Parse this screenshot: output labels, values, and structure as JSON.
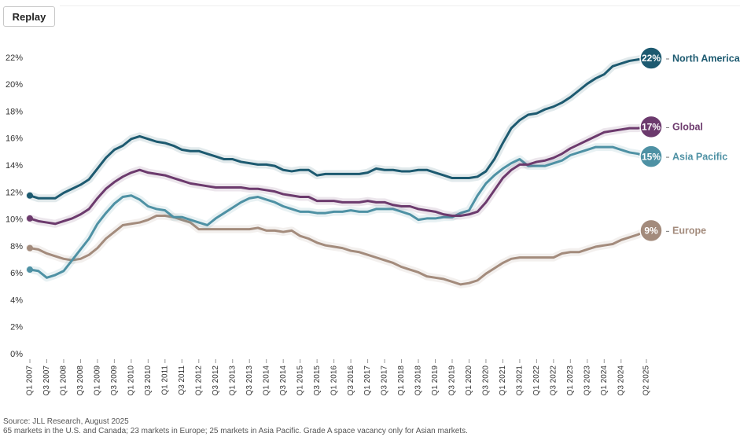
{
  "button": "Replay",
  "chart_data": {
    "type": "line",
    "categories": [
      "Q1 2007",
      null,
      "Q3 2007",
      null,
      "Q1 2008",
      null,
      "Q3 2008",
      null,
      "Q1 2009",
      null,
      "Q3 2009",
      null,
      "Q1 2010",
      null,
      "Q3 2010",
      null,
      "Q1 2011",
      null,
      "Q3 2011",
      null,
      "Q1 2012",
      null,
      "Q3 2012",
      null,
      "Q1 2013",
      null,
      "Q3 2013",
      null,
      "Q1 2014",
      null,
      "Q3 2014",
      null,
      "Q1 2015",
      null,
      "Q3 2015",
      null,
      "Q1 2016",
      null,
      "Q3 2016",
      null,
      "Q1 2017",
      null,
      "Q3 2017",
      null,
      "Q1 2018",
      null,
      "Q3 2018",
      null,
      "Q1 2019",
      null,
      "Q3 2019",
      null,
      "Q1 2020",
      null,
      "Q3 2020",
      null,
      "Q1 2021",
      null,
      "Q3 2021",
      null,
      "Q1 2022",
      null,
      "Q3 2022",
      null,
      "Q1 2023",
      null,
      "Q3 2023",
      null,
      "Q1 2024",
      null,
      "Q3 2024",
      null,
      null,
      "Q2 2025"
    ],
    "series": [
      {
        "name": "Europe",
        "color": "#a38b7c",
        "values": [
          7.9,
          7.8,
          7.5,
          7.3,
          7.1,
          7.0,
          7.1,
          7.4,
          7.9,
          8.6,
          9.1,
          9.6,
          9.7,
          9.8,
          10.0,
          10.3,
          10.3,
          10.2,
          10.0,
          9.8,
          9.3,
          9.3,
          9.3,
          9.3,
          9.3,
          9.3,
          9.3,
          9.4,
          9.2,
          9.2,
          9.1,
          9.2,
          8.8,
          8.6,
          8.3,
          8.1,
          8.0,
          7.9,
          7.7,
          7.6,
          7.4,
          7.2,
          7.0,
          6.8,
          6.5,
          6.3,
          6.1,
          5.8,
          5.7,
          5.6,
          5.4,
          5.2,
          5.3,
          5.5,
          6.0,
          6.4,
          6.8,
          7.1,
          7.2,
          7.2,
          7.2,
          7.2,
          7.2,
          7.5,
          7.6,
          7.6,
          7.8,
          8.0,
          8.1,
          8.2,
          8.5,
          8.7,
          8.9,
          9.2
        ],
        "value_labels": [
          null,
          null,
          null,
          null,
          null,
          null,
          null,
          null,
          null,
          null,
          null,
          null,
          null,
          null,
          null,
          null,
          null,
          null,
          null,
          null,
          null,
          null,
          null,
          null,
          null,
          null,
          null,
          null,
          null,
          null,
          null,
          null,
          null,
          null,
          null,
          null,
          null,
          null,
          null,
          null,
          null,
          null,
          null,
          null,
          null,
          null,
          null,
          null,
          null,
          null,
          null,
          null,
          null,
          null,
          null,
          null,
          null,
          null,
          null,
          null,
          null,
          null,
          null,
          null,
          null,
          null,
          null,
          null,
          null,
          null,
          null,
          null,
          null,
          "9%"
        ]
      },
      {
        "name": "Asia Pacific",
        "color": "#4e91a4",
        "values": [
          6.3,
          6.2,
          5.7,
          5.9,
          6.2,
          7.0,
          7.8,
          8.6,
          9.7,
          10.5,
          11.2,
          11.7,
          11.8,
          11.5,
          11.0,
          10.8,
          10.7,
          10.2,
          10.2,
          10.0,
          9.8,
          9.6,
          10.1,
          10.5,
          10.9,
          11.3,
          11.6,
          11.7,
          11.5,
          11.3,
          11.0,
          10.8,
          10.6,
          10.6,
          10.5,
          10.5,
          10.6,
          10.6,
          10.7,
          10.6,
          10.6,
          10.8,
          10.8,
          10.8,
          10.6,
          10.4,
          10.0,
          10.1,
          10.1,
          10.2,
          10.2,
          10.5,
          10.7,
          11.8,
          12.7,
          13.3,
          13.8,
          14.2,
          14.5,
          14.0,
          14.0,
          14.0,
          14.2,
          14.4,
          14.8,
          15.0,
          15.2,
          15.4,
          15.4,
          15.4,
          15.2,
          15.0,
          14.9,
          14.7
        ],
        "value_labels": [
          null,
          null,
          null,
          null,
          null,
          null,
          null,
          null,
          null,
          null,
          null,
          null,
          null,
          null,
          null,
          null,
          null,
          null,
          null,
          null,
          null,
          null,
          null,
          null,
          null,
          null,
          null,
          null,
          null,
          null,
          null,
          null,
          null,
          null,
          null,
          null,
          null,
          null,
          null,
          null,
          null,
          null,
          null,
          null,
          null,
          null,
          null,
          null,
          null,
          null,
          null,
          null,
          null,
          null,
          null,
          null,
          null,
          null,
          null,
          null,
          null,
          null,
          null,
          null,
          null,
          null,
          null,
          null,
          null,
          null,
          null,
          null,
          null,
          "15%"
        ]
      },
      {
        "name": "Global",
        "color": "#6c3a6d",
        "values": [
          10.1,
          9.9,
          9.8,
          9.7,
          9.9,
          10.1,
          10.4,
          10.8,
          11.6,
          12.3,
          12.8,
          13.2,
          13.5,
          13.7,
          13.5,
          13.4,
          13.3,
          13.1,
          12.9,
          12.7,
          12.6,
          12.5,
          12.4,
          12.4,
          12.4,
          12.4,
          12.3,
          12.3,
          12.2,
          12.1,
          11.9,
          11.8,
          11.7,
          11.7,
          11.4,
          11.4,
          11.4,
          11.3,
          11.3,
          11.3,
          11.4,
          11.3,
          11.3,
          11.1,
          11.0,
          11.0,
          10.8,
          10.7,
          10.6,
          10.4,
          10.3,
          10.3,
          10.4,
          10.6,
          11.3,
          12.2,
          13.1,
          13.7,
          14.1,
          14.1,
          14.3,
          14.4,
          14.6,
          14.9,
          15.3,
          15.6,
          15.9,
          16.2,
          16.5,
          16.6,
          16.7,
          16.8,
          16.8,
          16.9
        ],
        "value_labels": [
          null,
          null,
          null,
          null,
          null,
          null,
          null,
          null,
          null,
          null,
          null,
          null,
          null,
          null,
          null,
          null,
          null,
          null,
          null,
          null,
          null,
          null,
          null,
          null,
          null,
          null,
          null,
          null,
          null,
          null,
          null,
          null,
          null,
          null,
          null,
          null,
          null,
          null,
          null,
          null,
          null,
          null,
          null,
          null,
          null,
          null,
          null,
          null,
          null,
          null,
          null,
          null,
          null,
          null,
          null,
          null,
          null,
          null,
          null,
          null,
          null,
          null,
          null,
          null,
          null,
          null,
          null,
          null,
          null,
          null,
          null,
          null,
          null,
          "17%"
        ]
      },
      {
        "name": "North America",
        "color": "#1d5a70",
        "values": [
          11.8,
          11.6,
          11.6,
          11.6,
          12.0,
          12.3,
          12.6,
          13.0,
          13.8,
          14.6,
          15.2,
          15.5,
          16.0,
          16.2,
          16.0,
          15.8,
          15.7,
          15.5,
          15.2,
          15.1,
          15.1,
          14.9,
          14.7,
          14.5,
          14.5,
          14.3,
          14.2,
          14.1,
          14.1,
          14.0,
          13.7,
          13.6,
          13.7,
          13.7,
          13.3,
          13.4,
          13.4,
          13.4,
          13.4,
          13.4,
          13.5,
          13.8,
          13.7,
          13.7,
          13.6,
          13.6,
          13.7,
          13.7,
          13.5,
          13.3,
          13.1,
          13.1,
          13.1,
          13.2,
          13.6,
          14.5,
          15.7,
          16.8,
          17.4,
          17.8,
          17.9,
          18.2,
          18.4,
          18.7,
          19.1,
          19.6,
          20.1,
          20.5,
          20.8,
          21.4,
          21.6,
          21.8,
          21.9,
          22.0
        ],
        "value_labels": [
          null,
          null,
          null,
          null,
          null,
          null,
          null,
          null,
          null,
          null,
          null,
          null,
          null,
          null,
          null,
          null,
          null,
          null,
          null,
          null,
          null,
          null,
          null,
          null,
          null,
          null,
          null,
          null,
          null,
          null,
          null,
          null,
          null,
          null,
          null,
          null,
          null,
          null,
          null,
          null,
          null,
          null,
          null,
          null,
          null,
          null,
          null,
          null,
          null,
          null,
          null,
          null,
          null,
          null,
          null,
          null,
          null,
          null,
          null,
          null,
          null,
          null,
          null,
          null,
          null,
          null,
          null,
          null,
          null,
          null,
          null,
          null,
          null,
          "22%"
        ]
      }
    ],
    "ylim": [
      0,
      22
    ],
    "yticks": [
      {
        "value": 0,
        "label": "0%"
      },
      {
        "value": 2,
        "label": "2%"
      },
      {
        "value": 4,
        "label": "4%"
      },
      {
        "value": 6,
        "label": "6%"
      },
      {
        "value": 8,
        "label": "8%"
      },
      {
        "value": 10,
        "label": "10%"
      },
      {
        "value": 12,
        "label": "12%"
      },
      {
        "value": 14,
        "label": "14%"
      },
      {
        "value": 16,
        "label": "16%"
      },
      {
        "value": 18,
        "label": "18%"
      },
      {
        "value": 20,
        "label": "20%"
      },
      {
        "value": 22,
        "label": "22%"
      }
    ],
    "grid": false
  },
  "notes": [
    "Source: JLL Research, August 2025",
    "65 markets in the U.S. and Canada; 23 markets in Europe; 25 markets in Asia Pacific. Grade A space vacancy only for Asian markets."
  ]
}
